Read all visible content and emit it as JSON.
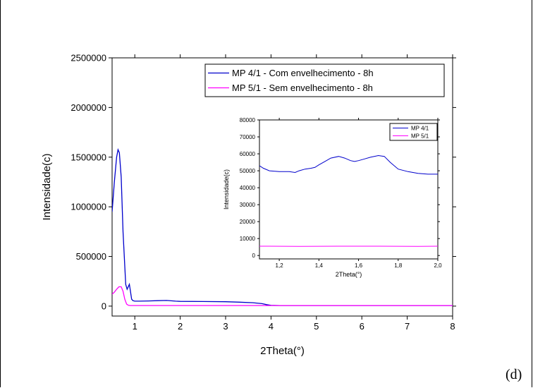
{
  "panel_label": "(d)",
  "chart_data": [
    {
      "type": "line",
      "xlabel": "2Theta(°)",
      "ylabel": "Intensidade(c)",
      "xlim": [
        0.5,
        8
      ],
      "ylim": [
        -100000,
        2500000
      ],
      "x_ticks": [
        1,
        2,
        3,
        4,
        5,
        6,
        7,
        8
      ],
      "y_ticks": [
        0,
        500000,
        1000000,
        1500000,
        2000000,
        2500000
      ],
      "y_tick_labels": [
        "0",
        "500000",
        "1000000",
        "1500000",
        "2000000",
        "2500000"
      ],
      "grid": false,
      "legend_position": "top-right",
      "series": [
        {
          "name": "MP 4/1 - Com envelhecimento - 8h",
          "color": "#0000cc",
          "x": [
            0.5,
            0.55,
            0.6,
            0.63,
            0.66,
            0.7,
            0.74,
            0.78,
            0.8,
            0.83,
            0.86,
            0.88,
            0.9,
            0.93,
            0.96,
            1.0,
            1.1,
            1.3,
            1.5,
            1.7,
            1.9,
            2.0,
            2.5,
            3.0,
            3.3,
            3.6,
            3.8,
            3.9,
            4.0,
            4.2,
            4.5,
            5.0,
            6.0,
            7.0,
            8.0
          ],
          "y": [
            950000,
            1250000,
            1500000,
            1575000,
            1545000,
            1300000,
            750000,
            400000,
            220000,
            170000,
            200000,
            220000,
            160000,
            70000,
            55000,
            50000,
            50000,
            52000,
            55000,
            57000,
            50000,
            48000,
            46000,
            44000,
            40000,
            34000,
            25000,
            15000,
            8000,
            6000,
            6000,
            5500,
            5500,
            5500,
            5500
          ]
        },
        {
          "name": "MP 5/1 - Sem envelhecimento - 8h",
          "color": "#ff00ff",
          "x": [
            0.5,
            0.55,
            0.6,
            0.65,
            0.7,
            0.74,
            0.78,
            0.82,
            0.86,
            0.9,
            1.0,
            2.0,
            4.0,
            6.0,
            8.0
          ],
          "y": [
            120000,
            140000,
            170000,
            195000,
            195000,
            150000,
            70000,
            20000,
            8000,
            6000,
            5500,
            5500,
            5500,
            5500,
            5500
          ]
        }
      ]
    },
    {
      "type": "line",
      "xlabel": "2Theta(°)",
      "ylabel": "Intensidade(c)",
      "xlim": [
        1.1,
        2.0
      ],
      "ylim": [
        -2000,
        80000
      ],
      "x_ticks": [
        1.2,
        1.4,
        1.6,
        1.8,
        2.0
      ],
      "x_tick_labels": [
        "1,2",
        "1,4",
        "1,6",
        "1,8",
        "2,0"
      ],
      "y_ticks": [
        0,
        10000,
        20000,
        30000,
        40000,
        50000,
        60000,
        70000,
        80000
      ],
      "y_tick_labels": [
        "0",
        "10000",
        "20000",
        "30000",
        "40000",
        "50000",
        "60000",
        "70000",
        "80000"
      ],
      "grid": false,
      "legend_position": "top-right",
      "series": [
        {
          "name": "MP 4/1",
          "color": "#0000cc",
          "x": [
            1.1,
            1.12,
            1.15,
            1.2,
            1.25,
            1.28,
            1.3,
            1.33,
            1.36,
            1.38,
            1.4,
            1.43,
            1.46,
            1.5,
            1.53,
            1.56,
            1.58,
            1.6,
            1.63,
            1.66,
            1.7,
            1.73,
            1.76,
            1.8,
            1.85,
            1.9,
            1.95,
            2.0
          ],
          "y": [
            53000,
            51500,
            50000,
            49500,
            49500,
            49000,
            50000,
            51000,
            51500,
            52000,
            53500,
            55500,
            57500,
            58500,
            57500,
            56000,
            55500,
            56000,
            57000,
            58000,
            59000,
            58500,
            55000,
            51000,
            49500,
            48500,
            48000,
            48000
          ]
        },
        {
          "name": "MP 5/1",
          "color": "#ff00ff",
          "x": [
            1.1,
            1.3,
            1.5,
            1.7,
            1.9,
            2.0
          ],
          "y": [
            5500,
            5400,
            5500,
            5500,
            5400,
            5500
          ]
        }
      ]
    }
  ]
}
